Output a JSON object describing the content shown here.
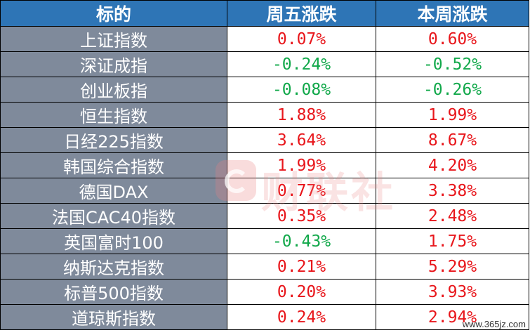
{
  "table": {
    "headers": [
      "标的",
      "周五涨跌",
      "本周涨跌"
    ],
    "rows": [
      {
        "name": "上证指数",
        "fri": "0.07%",
        "week": "0.60%",
        "fri_dir": "up",
        "week_dir": "up"
      },
      {
        "name": "深证成指",
        "fri": "-0.24%",
        "week": "-0.52%",
        "fri_dir": "down",
        "week_dir": "down"
      },
      {
        "name": "创业板指",
        "fri": "-0.08%",
        "week": "-0.26%",
        "fri_dir": "down",
        "week_dir": "down"
      },
      {
        "name": "恒生指数",
        "fri": "1.88%",
        "week": "1.99%",
        "fri_dir": "up",
        "week_dir": "up"
      },
      {
        "name": "日经225指数",
        "fri": "3.64%",
        "week": "8.67%",
        "fri_dir": "up",
        "week_dir": "up"
      },
      {
        "name": "韩国综合指数",
        "fri": "1.99%",
        "week": "4.20%",
        "fri_dir": "up",
        "week_dir": "up"
      },
      {
        "name": "德国DAX",
        "fri": "0.77%",
        "week": "3.38%",
        "fri_dir": "up",
        "week_dir": "up"
      },
      {
        "name": "法国CAC40指数",
        "fri": "0.35%",
        "week": "2.48%",
        "fri_dir": "up",
        "week_dir": "up"
      },
      {
        "name": "英国富时100",
        "fri": "-0.43%",
        "week": "1.75%",
        "fri_dir": "down",
        "week_dir": "up"
      },
      {
        "name": "纳斯达克指数",
        "fri": "0.21%",
        "week": "5.29%",
        "fri_dir": "up",
        "week_dir": "up"
      },
      {
        "name": "标普500指数",
        "fri": "0.20%",
        "week": "3.93%",
        "fri_dir": "up",
        "week_dir": "up"
      },
      {
        "name": "道琼斯指数",
        "fri": "0.24%",
        "week": "2.94%",
        "fri_dir": "up",
        "week_dir": "up"
      }
    ]
  },
  "colors": {
    "header_bg": "#2e75b6",
    "name_bg": "#7f8a9b",
    "up": "#e8161b",
    "down": "#11a84a"
  },
  "watermark": {
    "text": "财联社",
    "site": "www.365jz.com"
  }
}
